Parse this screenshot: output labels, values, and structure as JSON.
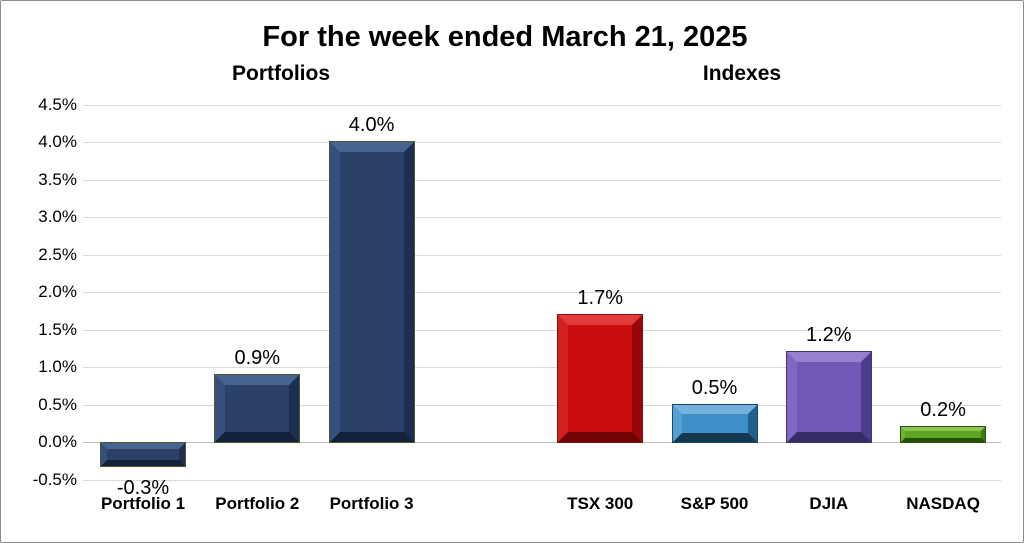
{
  "header": {
    "title": "For the week ended March 21, 2025"
  },
  "chart_data": {
    "type": "bar",
    "title": "For the week ended March 21, 2025",
    "group_labels": [
      "Portfolios",
      "Indexes"
    ],
    "categories": [
      "Portfolio 1",
      "Portfolio 2",
      "Portfolio 3",
      "TSX 300",
      "S&P 500",
      "DJIA",
      "NASDAQ"
    ],
    "values": [
      -0.3,
      0.9,
      4.0,
      1.7,
      0.5,
      1.2,
      0.2
    ],
    "value_labels": [
      "-0.3%",
      "0.9%",
      "4.0%",
      "1.7%",
      "0.5%",
      "1.2%",
      "0.2%"
    ],
    "xlabel": "",
    "ylabel": "",
    "ylim": [
      -0.5,
      4.5
    ],
    "ytick_step": 0.5,
    "grid": true,
    "gridline_color": "#d9d9d9",
    "zero_line_color": "#bfbfbf",
    "legend_position": "none",
    "yticks": [
      {
        "label": "4.5%",
        "v": 4.5
      },
      {
        "label": "4.0%",
        "v": 4.0
      },
      {
        "label": "3.5%",
        "v": 3.5
      },
      {
        "label": "3.0%",
        "v": 3.0
      },
      {
        "label": "2.5%",
        "v": 2.5
      },
      {
        "label": "2.0%",
        "v": 2.0
      },
      {
        "label": "1.5%",
        "v": 1.5
      },
      {
        "label": "1.0%",
        "v": 1.0
      },
      {
        "label": "0.5%",
        "v": 0.5
      },
      {
        "label": "0.0%",
        "v": 0.0
      },
      {
        "label": "-0.5%",
        "v": -0.5
      }
    ],
    "bars": [
      {
        "label": "Portfolio 1",
        "group": "Portfolios",
        "value": -0.3,
        "value_label": "-0.3%",
        "colors": {
          "fill": "#2b4168",
          "top": "#46648f",
          "left": "#35507c",
          "right": "#1c2f51",
          "bottom": "#14213a",
          "outline": "#4a5529"
        }
      },
      {
        "label": "Portfolio 2",
        "group": "Portfolios",
        "value": 0.9,
        "value_label": "0.9%",
        "colors": {
          "fill": "#2b4168",
          "top": "#46648f",
          "left": "#35507c",
          "right": "#1c2f51",
          "bottom": "#14213a",
          "outline": "#4a5529"
        }
      },
      {
        "label": "Portfolio 3",
        "group": "Portfolios",
        "value": 4.0,
        "value_label": "4.0%",
        "colors": {
          "fill": "#2b4168",
          "top": "#46648f",
          "left": "#35507c",
          "right": "#1c2f51",
          "bottom": "#14213a",
          "outline": "#4a5529"
        }
      },
      {
        "label": "TSX 300",
        "group": "Indexes",
        "value": 1.7,
        "value_label": "1.7%",
        "colors": {
          "fill": "#c90d0d",
          "top": "#e53a3a",
          "left": "#d42020",
          "right": "#970707",
          "bottom": "#6e0404",
          "outline": "#7c1208"
        }
      },
      {
        "label": "S&P 500",
        "group": "Indexes",
        "value": 0.5,
        "value_label": "0.5%",
        "colors": {
          "fill": "#3e8ec7",
          "top": "#74b2dd",
          "left": "#55a0d3",
          "right": "#20608e",
          "bottom": "#153850",
          "outline": "#1c4a66"
        }
      },
      {
        "label": "DJIA",
        "group": "Indexes",
        "value": 1.2,
        "value_label": "1.2%",
        "colors": {
          "fill": "#7158b6",
          "top": "#9680d0",
          "left": "#8069c2",
          "right": "#4c3b8a",
          "bottom": "#372b66",
          "outline": "#403473"
        }
      },
      {
        "label": "NASDAQ",
        "group": "Indexes",
        "value": 0.2,
        "value_label": "0.2%",
        "colors": {
          "fill": "#5fa423",
          "top": "#8ac74c",
          "left": "#70b232",
          "right": "#3d7a11",
          "bottom": "#265109",
          "outline": "#2f4a0c"
        }
      }
    ]
  }
}
